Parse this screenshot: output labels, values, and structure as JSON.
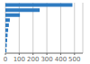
{
  "chart_data": {
    "type": "bar",
    "orientation": "horizontal",
    "categories": [
      null,
      null,
      null,
      null,
      null,
      null,
      null,
      null,
      null,
      null
    ],
    "values": [
      485,
      248,
      105,
      32,
      25,
      20,
      16,
      13,
      10,
      8
    ],
    "color": "#2f7bc1",
    "xlim": [
      0,
      560
    ],
    "xticks": [
      0,
      100,
      200,
      300,
      400,
      500
    ],
    "grid": true,
    "tick_labels": "x"
  }
}
